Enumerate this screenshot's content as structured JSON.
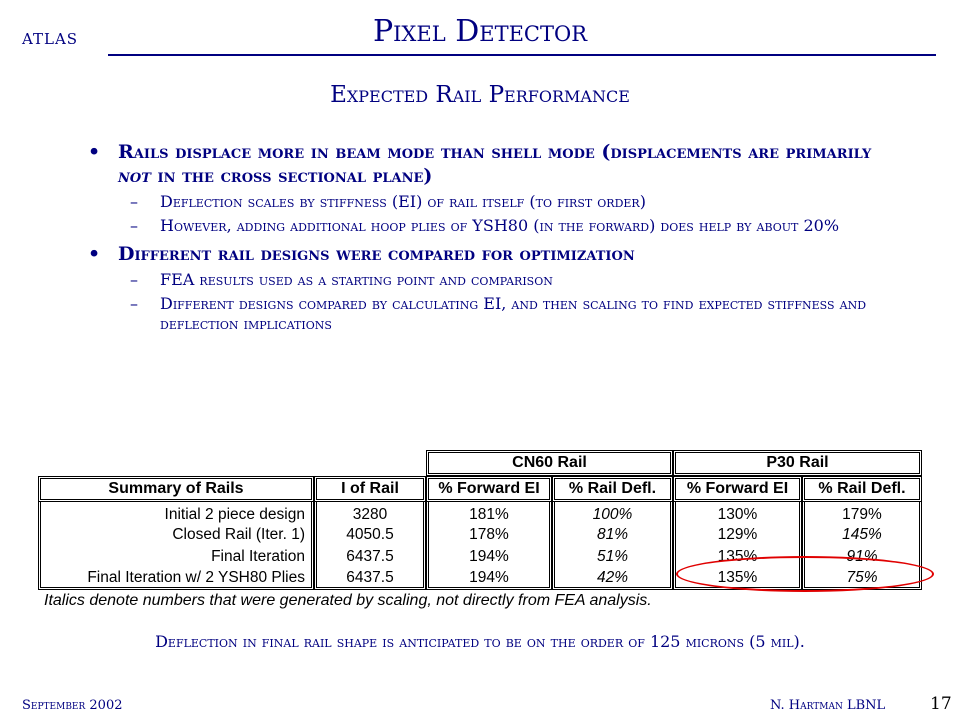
{
  "header": {
    "atlas": "ATLAS",
    "title": "Pixel Detector",
    "subtitle": "Expected Rail Performance"
  },
  "bullets": [
    {
      "text_before": "Rails displace more in beam mode than shell mode (displacements are primarily ",
      "emphasis": "not",
      "text_after": " in the cross sectional plane)",
      "subs": [
        "Deflection scales by stiffness (EI) of rail itself (to first order)",
        "However, adding additional hoop plies of YSH80 (in the forward) does help by about 20%"
      ]
    },
    {
      "text": "Different rail designs were compared for optimization",
      "subs": [
        "FEA results used as a starting point and comparison",
        "Different designs compared by calculating EI, and then scaling to find expected stiffness and deflection implications"
      ]
    }
  ],
  "table": {
    "group_headers": [
      "CN60 Rail",
      "P30 Rail"
    ],
    "columns": [
      "Summary of Rails",
      "I of Rail",
      "% Forward EI",
      "% Rail Defl.",
      "% Forward EI",
      "% Rail Defl."
    ],
    "rows": [
      {
        "name": "Initial 2 piece design",
        "i": "3280",
        "cn_fwd": "181%",
        "cn_defl": "100%",
        "p_fwd": "130%",
        "p_defl": "179%"
      },
      {
        "name": "Closed Rail (Iter. 1)",
        "i": "4050.5",
        "cn_fwd": "178%",
        "cn_defl": "81%",
        "p_fwd": "129%",
        "p_defl": "145%"
      },
      {
        "name": "Final Iteration",
        "i": "6437.5",
        "cn_fwd": "194%",
        "cn_defl": "51%",
        "p_fwd": "135%",
        "p_defl": "91%"
      },
      {
        "name": "Final Iteration w/ 2 YSH80 Plies",
        "i": "6437.5",
        "cn_fwd": "194%",
        "cn_defl": "42%",
        "p_fwd": "135%",
        "p_defl": "75%"
      }
    ],
    "note": "Italics denote numbers that were generated by scaling, not directly from FEA analysis."
  },
  "conclusion": "Deflection in final rail shape is anticipated to be on the order of 125 microns (5 mil).",
  "footer": {
    "date": "September 2002",
    "author": "N. Hartman LBNL",
    "page": "17"
  },
  "colors": {
    "text": "#000080",
    "highlight": "#e00000"
  }
}
